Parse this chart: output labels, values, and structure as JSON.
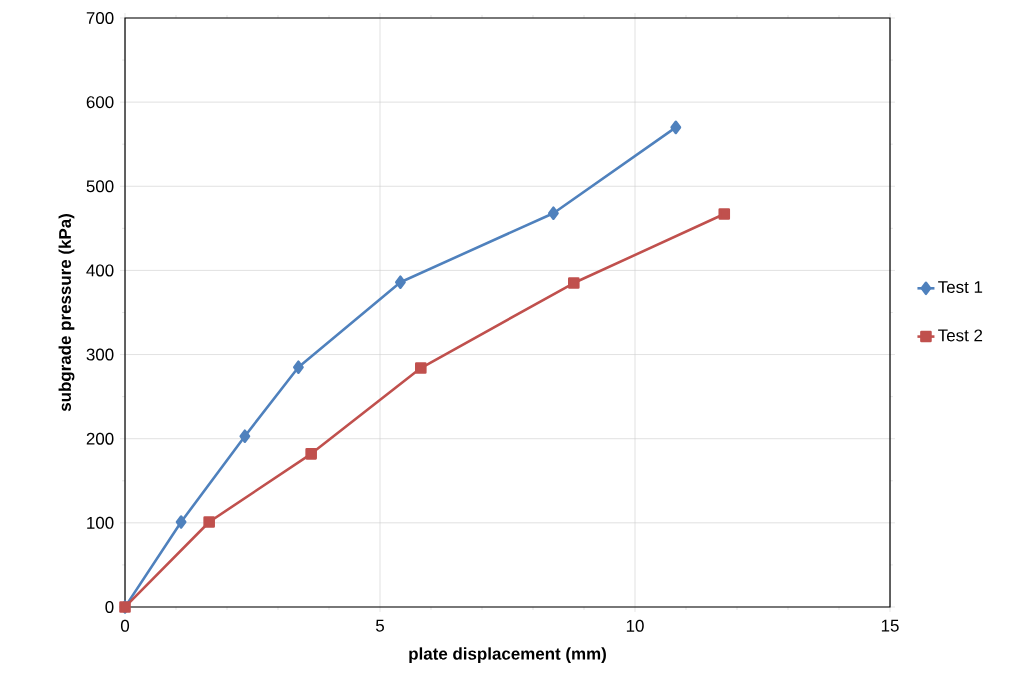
{
  "chart_data": {
    "type": "line",
    "xlabel": "plate displacement (mm)",
    "ylabel": "subgrade pressure (kPa)",
    "xlim": [
      0,
      15
    ],
    "ylim": [
      0,
      700
    ],
    "xticks": [
      0,
      5,
      10,
      15
    ],
    "yticks": [
      0,
      100,
      200,
      300,
      400,
      500,
      600,
      700
    ],
    "grid": true,
    "legend": "right",
    "series": [
      {
        "name": "Test 1",
        "color": "#4f81bd",
        "marker": "diamond",
        "x": [
          0,
          1.1,
          2.35,
          3.4,
          5.4,
          8.4,
          10.8
        ],
        "values": [
          0,
          101,
          203,
          285,
          386,
          468,
          570
        ]
      },
      {
        "name": "Test 2",
        "color": "#c0504d",
        "marker": "square",
        "x": [
          0,
          1.65,
          3.65,
          5.8,
          8.8,
          11.75
        ],
        "values": [
          0,
          101,
          182,
          284,
          385,
          467
        ]
      }
    ]
  }
}
